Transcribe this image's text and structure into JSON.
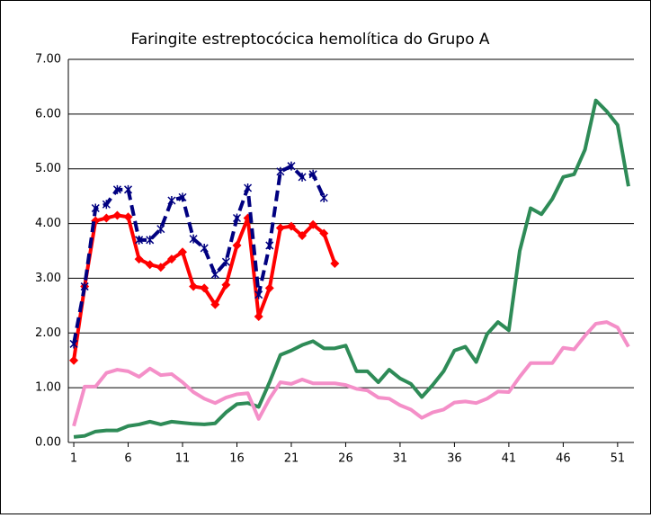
{
  "chart_data": {
    "type": "line",
    "title": "Faringite estreptocócica hemolítica do Grupo A",
    "x": [
      1,
      2,
      3,
      4,
      5,
      6,
      7,
      8,
      9,
      10,
      11,
      12,
      13,
      14,
      15,
      16,
      17,
      18,
      19,
      20,
      21,
      22,
      23,
      24,
      25,
      26,
      27,
      28,
      29,
      30,
      31,
      32,
      33,
      34,
      35,
      36,
      37,
      38,
      39,
      40,
      41,
      42,
      43,
      44,
      45,
      46,
      47,
      48,
      49,
      50,
      51,
      52
    ],
    "xlim": [
      0.5,
      52.5
    ],
    "xticks": [
      1,
      6,
      11,
      16,
      21,
      26,
      31,
      36,
      41,
      46,
      51
    ],
    "ylim": [
      0,
      7
    ],
    "yticks": [
      {
        "value": 0,
        "label": "0.00"
      },
      {
        "value": 1,
        "label": "1.00"
      },
      {
        "value": 2,
        "label": "2.00"
      },
      {
        "value": 3,
        "label": "3.00"
      },
      {
        "value": 4,
        "label": "4.00"
      },
      {
        "value": 5,
        "label": "5.00"
      },
      {
        "value": 6,
        "label": "6.00"
      },
      {
        "value": 7,
        "label": "7.00"
      }
    ],
    "grid": true,
    "series": [
      {
        "color": "#2e8b57",
        "values": [
          0.1,
          0.12,
          0.2,
          0.22,
          0.22,
          0.3,
          0.33,
          0.38,
          0.33,
          0.38,
          0.36,
          0.34,
          0.33,
          0.35,
          0.55,
          0.7,
          0.72,
          0.65,
          1.1,
          1.6,
          1.68,
          1.78,
          1.85,
          1.72,
          1.72,
          1.77,
          1.3,
          1.3,
          1.1,
          1.33,
          1.17,
          1.07,
          0.83,
          1.05,
          1.3,
          1.68,
          1.75,
          1.47,
          1.98,
          2.2,
          2.05,
          3.5,
          4.28,
          4.17,
          4.45,
          4.85,
          4.9,
          5.35,
          6.25,
          6.05,
          5.8,
          4.68
        ]
      },
      {
        "color": "#f48fc8",
        "values": [
          0.3,
          1.02,
          1.02,
          1.27,
          1.33,
          1.3,
          1.2,
          1.35,
          1.23,
          1.25,
          1.1,
          0.92,
          0.8,
          0.72,
          0.82,
          0.88,
          0.9,
          0.43,
          0.8,
          1.1,
          1.07,
          1.15,
          1.08,
          1.08,
          1.08,
          1.05,
          0.98,
          0.95,
          0.82,
          0.8,
          0.68,
          0.6,
          0.45,
          0.55,
          0.6,
          0.73,
          0.75,
          0.72,
          0.8,
          0.93,
          0.92,
          1.2,
          1.45,
          1.45,
          1.45,
          1.73,
          1.7,
          1.95,
          2.17,
          2.2,
          2.1,
          1.75
        ]
      },
      {
        "color": "#ff0000",
        "marker": "diamond",
        "values": [
          1.5,
          2.85,
          4.05,
          4.1,
          4.15,
          4.12,
          3.35,
          3.25,
          3.2,
          3.35,
          3.48,
          2.85,
          2.82,
          2.52,
          2.88,
          3.6,
          4.1,
          2.3,
          2.82,
          3.92,
          3.95,
          3.78,
          3.98,
          3.82,
          3.27,
          null,
          null,
          null,
          null,
          null,
          null,
          null,
          null,
          null,
          null,
          null,
          null,
          null,
          null,
          null,
          null,
          null,
          null,
          null,
          null,
          null,
          null,
          null,
          null,
          null,
          null,
          null
        ]
      },
      {
        "color": "#000080",
        "marker": "star",
        "dashed": true,
        "values": [
          1.8,
          2.85,
          4.28,
          4.35,
          4.62,
          4.62,
          3.7,
          3.7,
          3.9,
          4.42,
          4.48,
          3.72,
          3.55,
          3.07,
          3.3,
          4.1,
          4.65,
          2.7,
          3.6,
          4.95,
          5.05,
          4.85,
          4.9,
          4.47,
          null,
          null,
          null,
          null,
          null,
          null,
          null,
          null,
          null,
          null,
          null,
          null,
          null,
          null,
          null,
          null,
          null,
          null,
          null,
          null,
          null,
          null,
          null,
          null,
          null,
          null,
          null,
          null
        ]
      }
    ]
  }
}
